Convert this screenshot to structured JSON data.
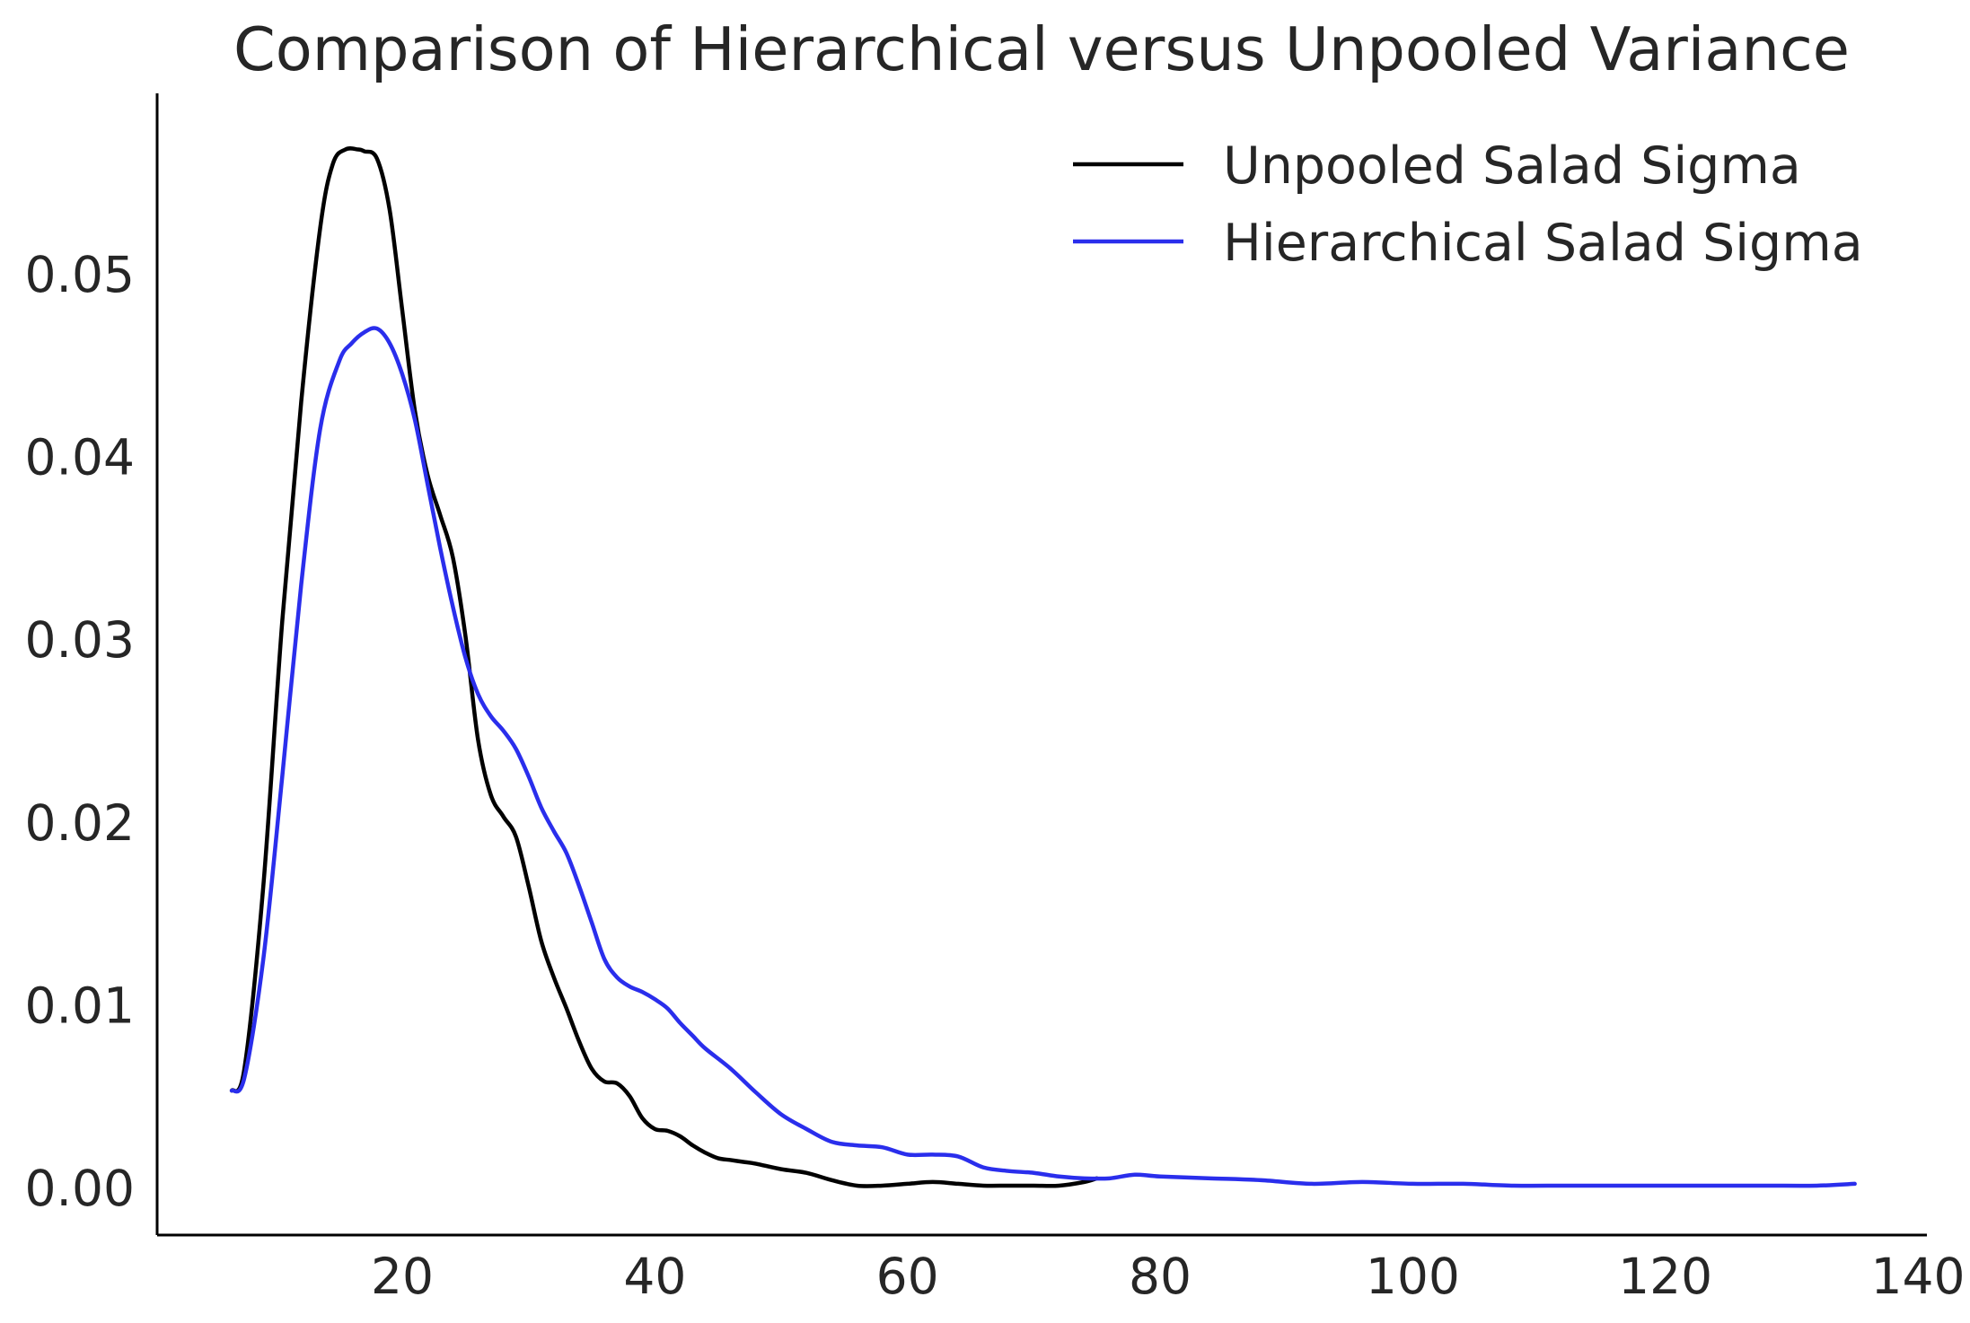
{
  "chart_data": {
    "type": "line",
    "title": "Comparison of Hierarchical versus Unpooled Variance",
    "xlabel": "",
    "ylabel": "",
    "xlim": [
      0,
      140
    ],
    "ylim": [
      -0.0028,
      0.0597
    ],
    "x_ticks": [
      20,
      40,
      60,
      80,
      100,
      120,
      140
    ],
    "y_ticks": [
      0.0,
      0.01,
      0.02,
      0.03,
      0.04,
      0.05
    ],
    "x_tick_labels": [
      "20",
      "40",
      "60",
      "80",
      "100",
      "120",
      "140"
    ],
    "y_tick_labels": [
      "0.00",
      "0.01",
      "0.02",
      "0.03",
      "0.04",
      "0.05"
    ],
    "grid": false,
    "legend_position": "top-right",
    "series": [
      {
        "name": "Unpooled Salad Sigma",
        "color": "#000000",
        "x": [
          6.5,
          7.5,
          9.0,
          10.5,
          12.0,
          13.5,
          14.5,
          15.5,
          16.5,
          17.0,
          18.0,
          19.0,
          20.0,
          21.0,
          22.0,
          23.0,
          24.0,
          25.0,
          26.0,
          27.0,
          28.0,
          29.0,
          30.0,
          31.0,
          32.0,
          33.0,
          34.0,
          35.0,
          36.0,
          37.0,
          38.0,
          39.0,
          40.0,
          41.0,
          42.0,
          43.0,
          44.0,
          45.0,
          46.0,
          47.0,
          48.0,
          50.0,
          52.0,
          54.0,
          56.0,
          58.0,
          60.0,
          62.0,
          64.0,
          66.0,
          68.0,
          70.0,
          72.0,
          74.0,
          75.0
        ],
        "y": [
          0.0053,
          0.0065,
          0.0165,
          0.031,
          0.043,
          0.0525,
          0.056,
          0.0568,
          0.0568,
          0.0567,
          0.0563,
          0.0535,
          0.048,
          0.0425,
          0.039,
          0.0368,
          0.0345,
          0.0302,
          0.0245,
          0.0215,
          0.0203,
          0.0192,
          0.0165,
          0.0135,
          0.0115,
          0.0098,
          0.008,
          0.0065,
          0.0058,
          0.0057,
          0.005,
          0.0038,
          0.0032,
          0.0031,
          0.0028,
          0.0023,
          0.0019,
          0.0016,
          0.0015,
          0.0014,
          0.0013,
          0.001,
          0.0008,
          0.0004,
          0.0001,
          0.0001,
          0.0002,
          0.0003,
          0.0002,
          0.0001,
          0.0001,
          0.0001,
          0.0001,
          0.0003,
          0.0005
        ]
      },
      {
        "name": "Hierarchical Salad Sigma",
        "color": "#2a2eec",
        "x": [
          6.5,
          7.5,
          9.0,
          10.5,
          12.0,
          13.5,
          15.0,
          16.0,
          17.0,
          18.0,
          19.0,
          20.0,
          21.0,
          22.0,
          23.0,
          24.0,
          25.0,
          26.0,
          27.0,
          28.0,
          29.0,
          30.0,
          31.0,
          32.0,
          33.0,
          34.0,
          35.0,
          36.0,
          37.0,
          38.0,
          39.0,
          40.0,
          41.0,
          42.0,
          43.0,
          44.0,
          46.0,
          48.0,
          50.0,
          52.0,
          54.0,
          56.0,
          58.0,
          60.0,
          62.0,
          64.0,
          66.0,
          68.0,
          70.0,
          72.0,
          74.0,
          76.0,
          78.0,
          80.0,
          84.0,
          88.0,
          92.0,
          96.0,
          100.0,
          104.0,
          108.0,
          112.0,
          116.0,
          120.0,
          124.0,
          128.0,
          132.0,
          135.0
        ],
        "y": [
          0.0053,
          0.006,
          0.0125,
          0.0225,
          0.033,
          0.0415,
          0.0452,
          0.0462,
          0.0468,
          0.047,
          0.0462,
          0.0445,
          0.042,
          0.0385,
          0.035,
          0.0318,
          0.029,
          0.027,
          0.0258,
          0.025,
          0.024,
          0.0225,
          0.0208,
          0.0195,
          0.0183,
          0.0165,
          0.0145,
          0.0125,
          0.0115,
          0.011,
          0.0107,
          0.0103,
          0.0098,
          0.009,
          0.0083,
          0.0076,
          0.0065,
          0.0052,
          0.004,
          0.0032,
          0.0025,
          0.0023,
          0.0022,
          0.0018,
          0.0018,
          0.0017,
          0.0011,
          0.0009,
          0.0008,
          0.0006,
          0.0005,
          0.0005,
          0.0007,
          0.0006,
          0.0005,
          0.0004,
          0.0002,
          0.0003,
          0.0002,
          0.0002,
          0.0001,
          0.0001,
          0.0001,
          0.0001,
          0.0001,
          0.0001,
          0.0001,
          0.0002
        ]
      }
    ]
  }
}
